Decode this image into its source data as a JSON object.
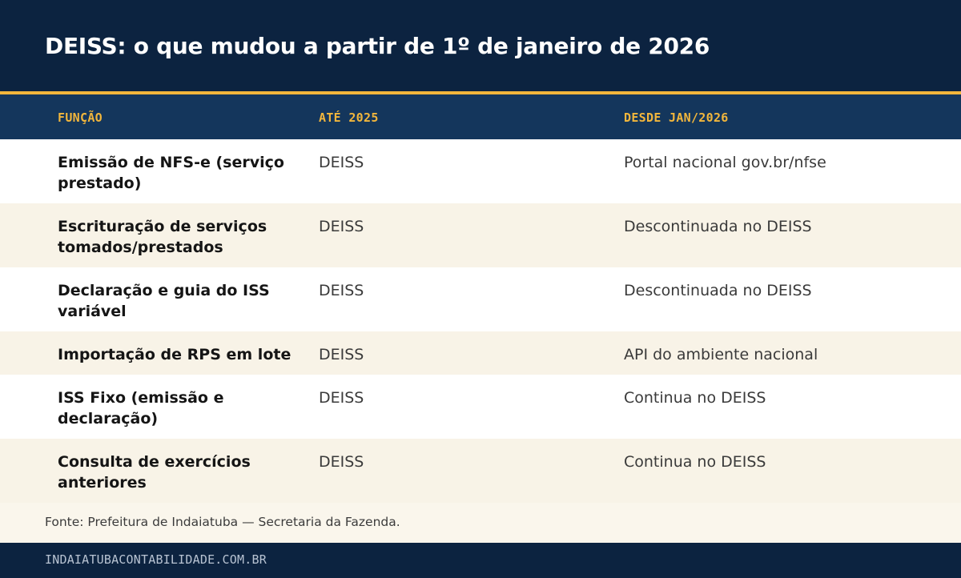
{
  "header": {
    "title": "DEISS: o que mudou a partir de 1º de janeiro de 2026"
  },
  "colors": {
    "navy": "#0c2340",
    "table_head": "#14365c",
    "accent": "#f2b63c",
    "row_white": "#ffffff",
    "row_cream": "#f8f3e7"
  },
  "table": {
    "columns": [
      "FUNÇÃO",
      "ATÉ 2025",
      "DESDE JAN/2026"
    ],
    "rows": [
      {
        "funcao": "Emissão de NFS-e (serviço prestado)",
        "ate_2025": "DEISS",
        "desde_2026": "Portal nacional gov.br/nfse"
      },
      {
        "funcao": "Escrituração de serviços tomados/prestados",
        "ate_2025": "DEISS",
        "desde_2026": "Descontinuada no DEISS"
      },
      {
        "funcao": "Declaração e guia do ISS variável",
        "ate_2025": "DEISS",
        "desde_2026": "Descontinuada no DEISS"
      },
      {
        "funcao": "Importação de RPS em lote",
        "ate_2025": "DEISS",
        "desde_2026": "API do ambiente nacional"
      },
      {
        "funcao": "ISS Fixo (emissão e declaração)",
        "ate_2025": "DEISS",
        "desde_2026": "Continua no DEISS"
      },
      {
        "funcao": "Consulta de exercícios anteriores",
        "ate_2025": "DEISS",
        "desde_2026": "Continua no DEISS"
      }
    ]
  },
  "source": "Fonte: Prefeitura de Indaiatuba — Secretaria da Fazenda.",
  "footer": {
    "site": "INDAIATUBACONTABILIDADE.COM.BR"
  }
}
